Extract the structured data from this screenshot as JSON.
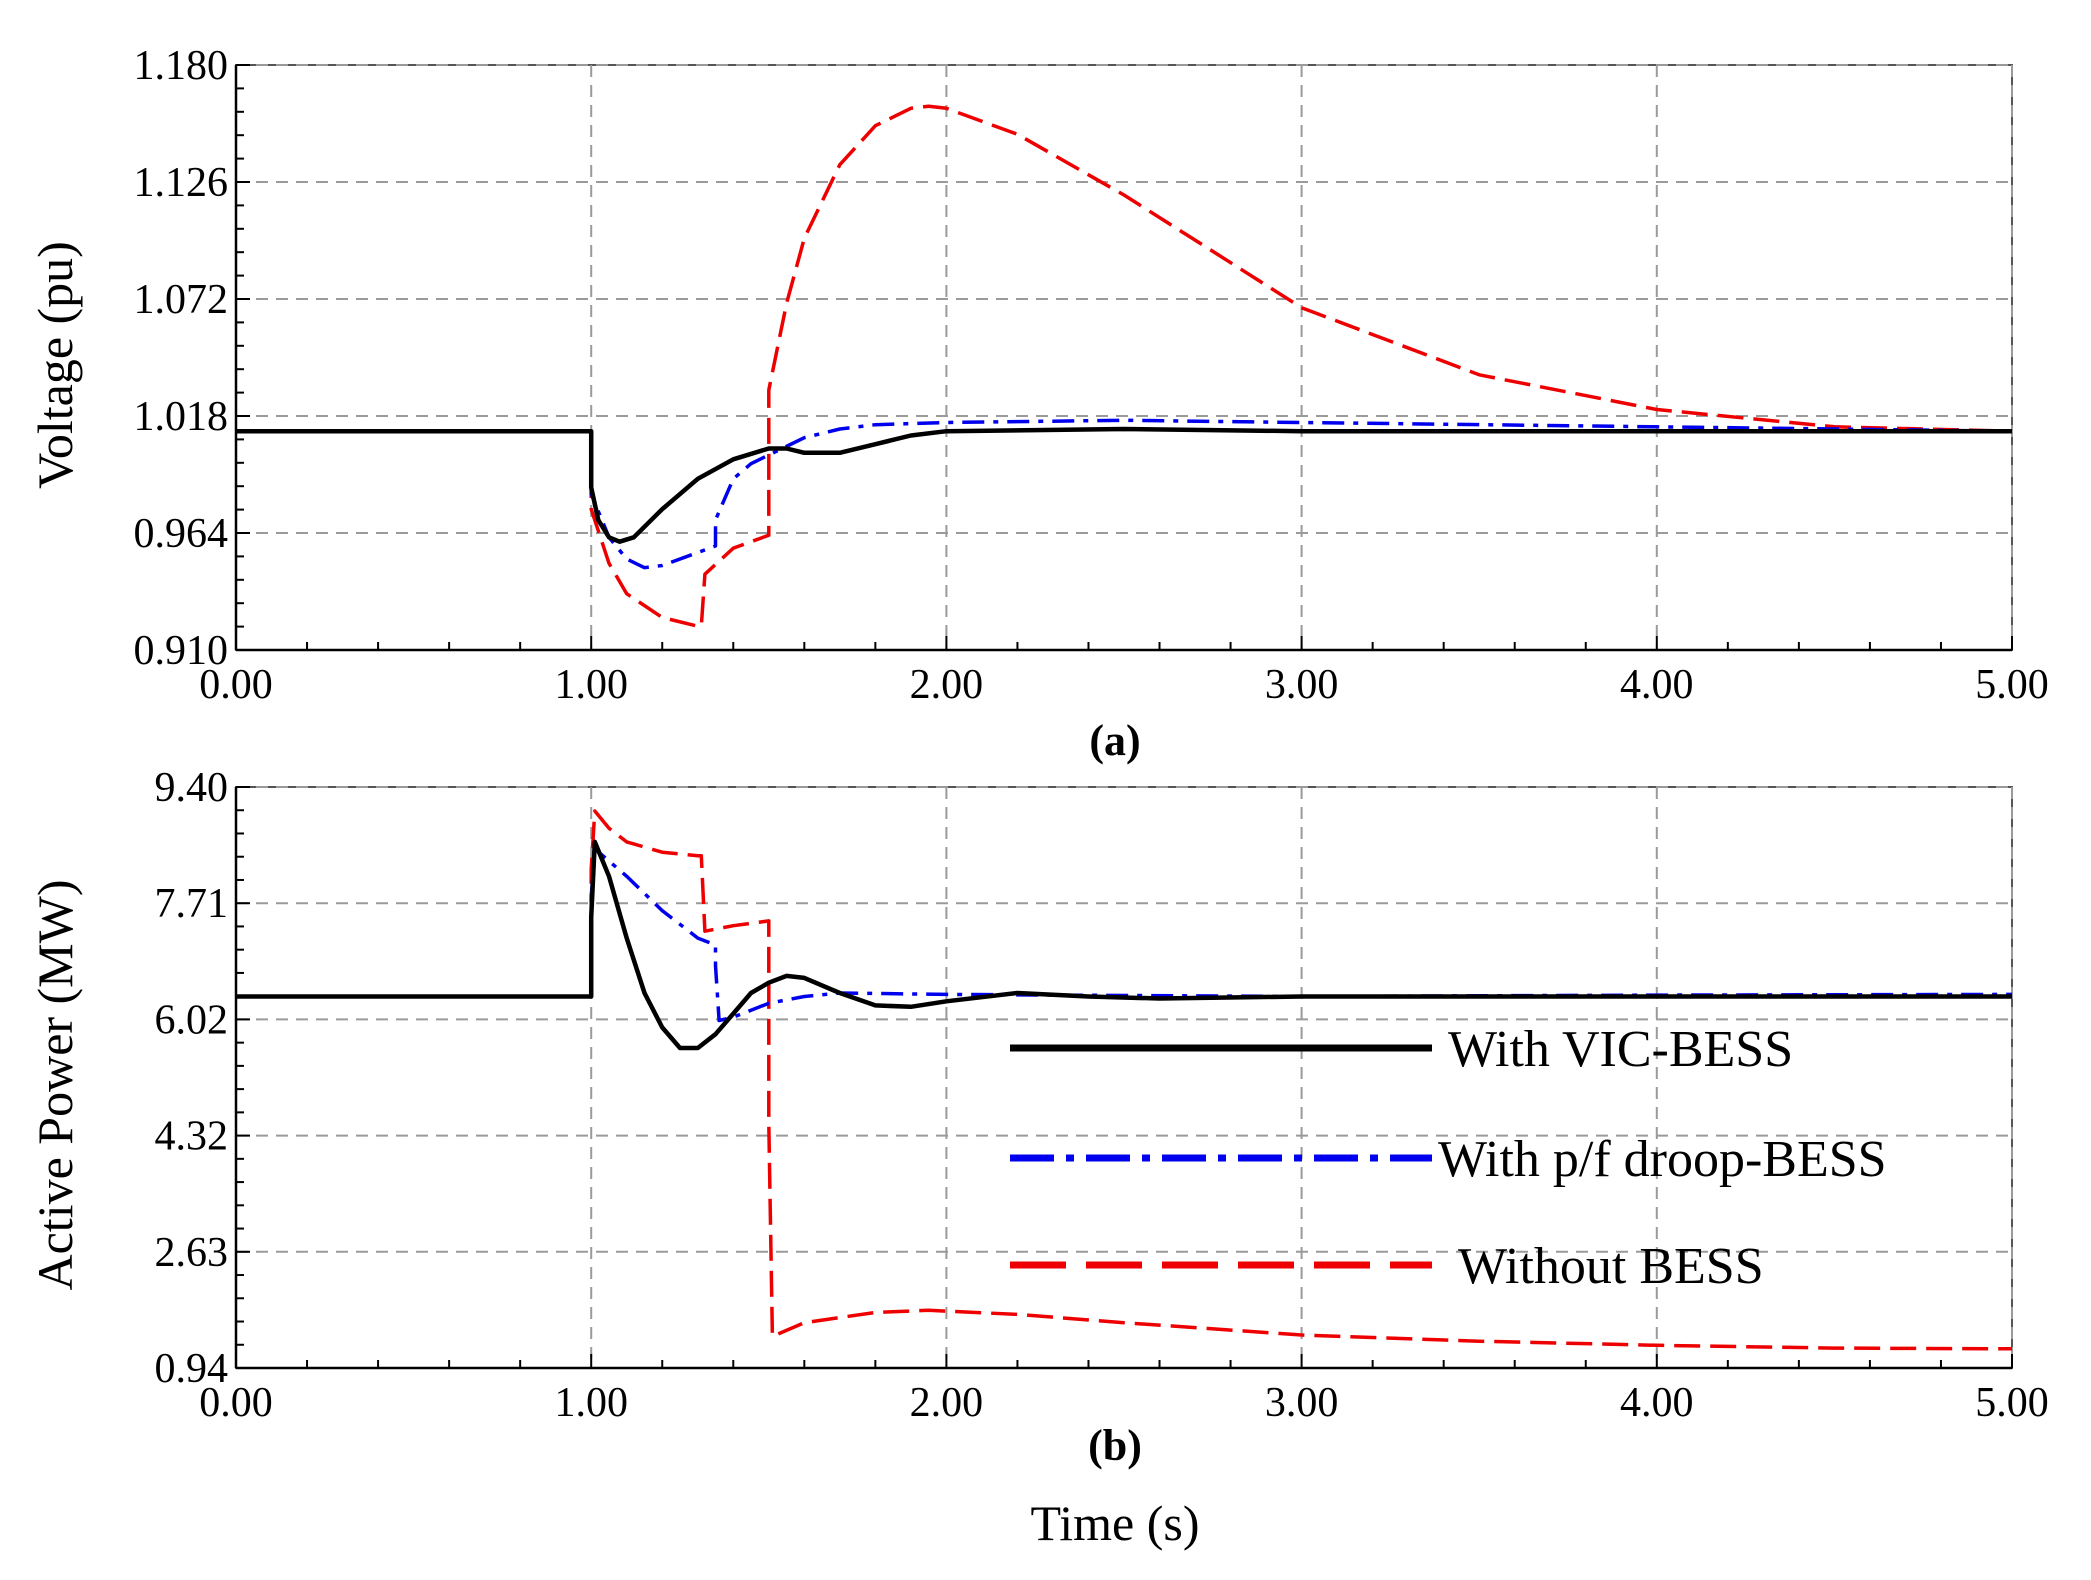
{
  "chart_data": [
    {
      "type": "line",
      "caption": "(a)",
      "ylabel": "Voltage (pu)",
      "xlabel": "",
      "xlim": [
        0,
        5
      ],
      "ylim": [
        0.91,
        1.18
      ],
      "xticks": [
        "0.00",
        "1.00",
        "2.00",
        "3.00",
        "4.00",
        "5.00"
      ],
      "yticks": [
        "0.910",
        "0.964",
        "1.018",
        "1.072",
        "1.126",
        "1.180"
      ],
      "grid": true,
      "series": [
        {
          "name": "With VIC-BESS",
          "color": "#000000",
          "style": "solid",
          "points": [
            [
              0,
              1.011
            ],
            [
              1.0,
              1.011
            ],
            [
              1.0,
              0.985
            ],
            [
              1.02,
              0.97
            ],
            [
              1.05,
              0.962
            ],
            [
              1.08,
              0.96
            ],
            [
              1.12,
              0.962
            ],
            [
              1.2,
              0.975
            ],
            [
              1.3,
              0.989
            ],
            [
              1.4,
              0.998
            ],
            [
              1.5,
              1.003
            ],
            [
              1.55,
              1.003
            ],
            [
              1.6,
              1.001
            ],
            [
              1.7,
              1.001
            ],
            [
              1.8,
              1.005
            ],
            [
              1.9,
              1.009
            ],
            [
              2.0,
              1.011
            ],
            [
              2.5,
              1.012
            ],
            [
              3.0,
              1.011
            ],
            [
              5.0,
              1.011
            ]
          ]
        },
        {
          "name": "With p/f droop-BESS",
          "color": "#0000ee",
          "style": "dashdot",
          "points": [
            [
              0,
              1.011
            ],
            [
              1.0,
              1.011
            ],
            [
              1.0,
              0.982
            ],
            [
              1.05,
              0.962
            ],
            [
              1.1,
              0.952
            ],
            [
              1.15,
              0.948
            ],
            [
              1.2,
              0.949
            ],
            [
              1.3,
              0.955
            ],
            [
              1.35,
              0.958
            ],
            [
              1.35,
              0.97
            ],
            [
              1.4,
              0.989
            ],
            [
              1.45,
              0.996
            ],
            [
              1.5,
              1.0
            ],
            [
              1.6,
              1.008
            ],
            [
              1.7,
              1.012
            ],
            [
              1.8,
              1.014
            ],
            [
              2.0,
              1.015
            ],
            [
              2.5,
              1.016
            ],
            [
              3.0,
              1.015
            ],
            [
              4.0,
              1.013
            ],
            [
              5.0,
              1.011
            ]
          ]
        },
        {
          "name": "Without BESS",
          "color": "#ee0000",
          "style": "dashed",
          "points": [
            [
              0,
              1.011
            ],
            [
              1.0,
              1.011
            ],
            [
              1.0,
              0.975
            ],
            [
              1.05,
              0.95
            ],
            [
              1.1,
              0.936
            ],
            [
              1.2,
              0.925
            ],
            [
              1.3,
              0.921
            ],
            [
              1.31,
              0.921
            ],
            [
              1.32,
              0.945
            ],
            [
              1.4,
              0.957
            ],
            [
              1.5,
              0.963
            ],
            [
              1.5,
              1.03
            ],
            [
              1.55,
              1.07
            ],
            [
              1.6,
              1.1
            ],
            [
              1.7,
              1.134
            ],
            [
              1.8,
              1.152
            ],
            [
              1.9,
              1.16
            ],
            [
              1.95,
              1.161
            ],
            [
              2.0,
              1.16
            ],
            [
              2.2,
              1.148
            ],
            [
              2.5,
              1.12
            ],
            [
              3.0,
              1.068
            ],
            [
              3.5,
              1.037
            ],
            [
              4.0,
              1.021
            ],
            [
              4.5,
              1.013
            ],
            [
              5.0,
              1.011
            ]
          ]
        }
      ]
    },
    {
      "type": "line",
      "caption": "(b)",
      "ylabel": "Active Power (MW)",
      "xlabel": "Time (s)",
      "xlim": [
        0,
        5
      ],
      "ylim": [
        0.94,
        9.4
      ],
      "xticks": [
        "0.00",
        "1.00",
        "2.00",
        "3.00",
        "4.00",
        "5.00"
      ],
      "yticks": [
        "0.94",
        "2.63",
        "4.32",
        "6.02",
        "7.71",
        "9.40"
      ],
      "grid": true,
      "legend_position": "center-right",
      "series": [
        {
          "name": "With VIC-BESS",
          "color": "#000000",
          "style": "solid",
          "points": [
            [
              0,
              6.35
            ],
            [
              1.0,
              6.35
            ],
            [
              1.0,
              7.5
            ],
            [
              1.01,
              8.6
            ],
            [
              1.05,
              8.1
            ],
            [
              1.1,
              7.2
            ],
            [
              1.15,
              6.4
            ],
            [
              1.2,
              5.9
            ],
            [
              1.25,
              5.6
            ],
            [
              1.3,
              5.6
            ],
            [
              1.35,
              5.8
            ],
            [
              1.4,
              6.1
            ],
            [
              1.45,
              6.4
            ],
            [
              1.5,
              6.55
            ],
            [
              1.55,
              6.65
            ],
            [
              1.6,
              6.62
            ],
            [
              1.7,
              6.4
            ],
            [
              1.8,
              6.22
            ],
            [
              1.9,
              6.2
            ],
            [
              2.0,
              6.28
            ],
            [
              2.2,
              6.4
            ],
            [
              2.4,
              6.35
            ],
            [
              2.6,
              6.32
            ],
            [
              3.0,
              6.35
            ],
            [
              5.0,
              6.35
            ]
          ]
        },
        {
          "name": "With p/f droop-BESS",
          "color": "#0000ee",
          "style": "dashdot",
          "points": [
            [
              0,
              6.35
            ],
            [
              1.0,
              6.35
            ],
            [
              1.0,
              7.8
            ],
            [
              1.01,
              8.5
            ],
            [
              1.1,
              8.1
            ],
            [
              1.2,
              7.6
            ],
            [
              1.3,
              7.2
            ],
            [
              1.35,
              7.1
            ],
            [
              1.35,
              6.8
            ],
            [
              1.36,
              6.0
            ],
            [
              1.4,
              6.05
            ],
            [
              1.5,
              6.25
            ],
            [
              1.6,
              6.35
            ],
            [
              1.7,
              6.4
            ],
            [
              2.0,
              6.38
            ],
            [
              3.0,
              6.35
            ],
            [
              4.0,
              6.37
            ],
            [
              5.0,
              6.38
            ]
          ]
        },
        {
          "name": "Without BESS",
          "color": "#ee0000",
          "style": "dashed",
          "points": [
            [
              0,
              6.35
            ],
            [
              1.0,
              6.35
            ],
            [
              1.0,
              8.2
            ],
            [
              1.01,
              9.05
            ],
            [
              1.05,
              8.8
            ],
            [
              1.1,
              8.6
            ],
            [
              1.2,
              8.45
            ],
            [
              1.3,
              8.4
            ],
            [
              1.31,
              8.4
            ],
            [
              1.32,
              7.3
            ],
            [
              1.4,
              7.38
            ],
            [
              1.5,
              7.45
            ],
            [
              1.5,
              4.5
            ],
            [
              1.51,
              1.4
            ],
            [
              1.6,
              1.6
            ],
            [
              1.8,
              1.75
            ],
            [
              1.95,
              1.78
            ],
            [
              2.2,
              1.72
            ],
            [
              2.5,
              1.6
            ],
            [
              3.0,
              1.42
            ],
            [
              3.5,
              1.33
            ],
            [
              4.0,
              1.27
            ],
            [
              4.5,
              1.23
            ],
            [
              5.0,
              1.22
            ]
          ]
        }
      ]
    }
  ]
}
